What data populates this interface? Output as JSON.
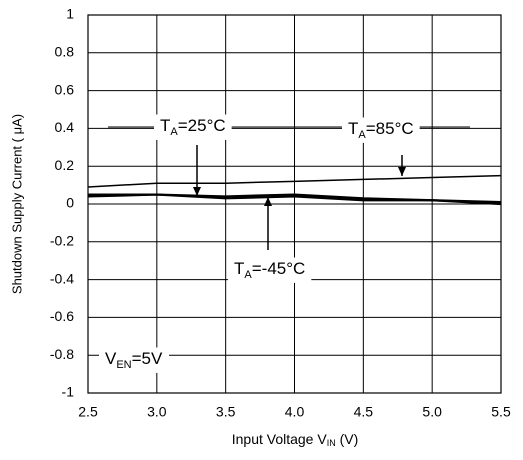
{
  "chart_data": {
    "type": "line",
    "y_label": "Shutdown Supply Current ( μA)",
    "x_label": {
      "main": "Input Voltage V",
      "sub": "IN",
      "rest": " (V)"
    },
    "x": [
      2.5,
      3.0,
      3.5,
      4.0,
      4.5,
      5.0,
      5.5
    ],
    "series": [
      {
        "color": "#000000",
        "values": [
          0.09,
          0.11,
          0.11,
          0.12,
          0.13,
          0.14,
          0.15
        ]
      },
      {
        "color": "#000000",
        "values": [
          0.05,
          0.05,
          0.04,
          0.05,
          0.03,
          0.02,
          0.01
        ]
      },
      {
        "color": "#000000",
        "values": [
          0.04,
          0.05,
          0.03,
          0.04,
          0.02,
          0.02,
          0.0
        ]
      }
    ],
    "annotations": [
      {
        "main": "T",
        "sub": "A",
        "rest": "=25°C"
      },
      {
        "main": "T",
        "sub": "A",
        "rest": "=85°C"
      },
      {
        "main": "T",
        "sub": "A",
        "rest": "=-45°C"
      },
      {
        "main": "V",
        "sub": "EN",
        "rest": "=5V"
      }
    ],
    "xlim": [
      2.5,
      5.5
    ],
    "xticks": [
      2.5,
      {
        "value": 3,
        "label": "3.0"
      },
      3.5,
      {
        "value": 4,
        "label": "4.0"
      },
      4.5,
      {
        "value": 5,
        "label": "5.0"
      },
      5.5
    ],
    "ylim": [
      -1,
      1
    ],
    "yticks": [
      1,
      0.8,
      0.6,
      0.4,
      0.2,
      0,
      -0.2,
      -0.4,
      -0.6,
      -0.8,
      -1
    ],
    "grid": true
  }
}
